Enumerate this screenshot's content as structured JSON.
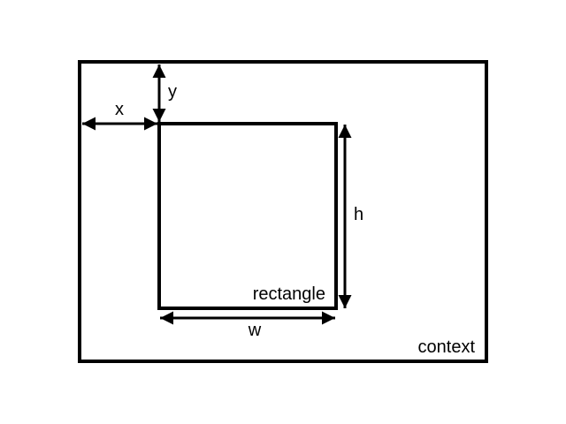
{
  "labels": {
    "x": "x",
    "y": "y",
    "width": "w",
    "height": "h",
    "rectangle": "rectangle",
    "context": "context"
  },
  "colors": {
    "stroke": "#000000",
    "background": "#ffffff"
  }
}
